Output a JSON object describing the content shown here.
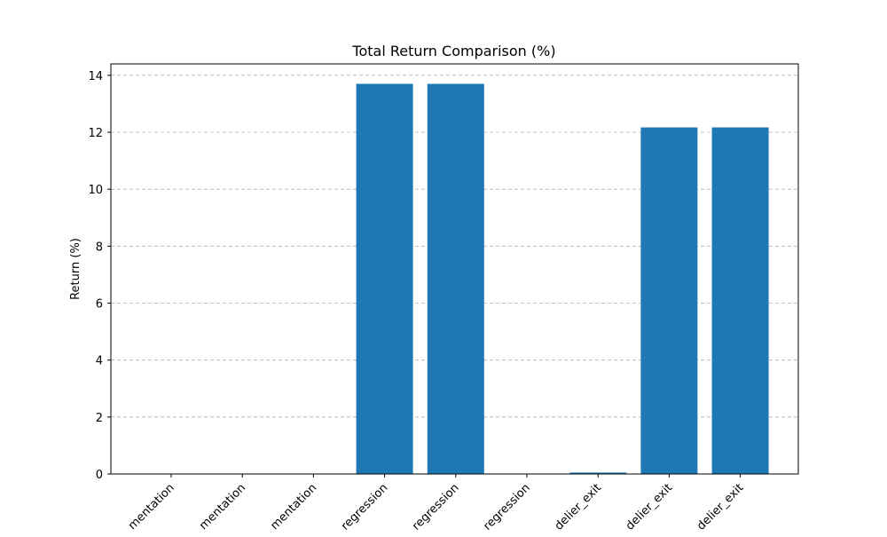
{
  "chart_data": {
    "type": "bar",
    "title": "Total Return Comparison (%)",
    "xlabel": "",
    "ylabel": "Return (%)",
    "categories": [
      "mentation",
      "mentation",
      "mentation",
      "regression",
      "regression",
      "regression",
      "delier_exit",
      "delier_exit",
      "delier_exit"
    ],
    "values": [
      0,
      0,
      0,
      13.7,
      13.7,
      0,
      0.05,
      12.17,
      12.17
    ],
    "ylim": [
      0,
      14.4
    ],
    "yticks": [
      "0",
      "2",
      "4",
      "6",
      "8",
      "10",
      "12",
      "14"
    ],
    "grid": "y-dashed",
    "bar_color": "#1f77b4"
  }
}
